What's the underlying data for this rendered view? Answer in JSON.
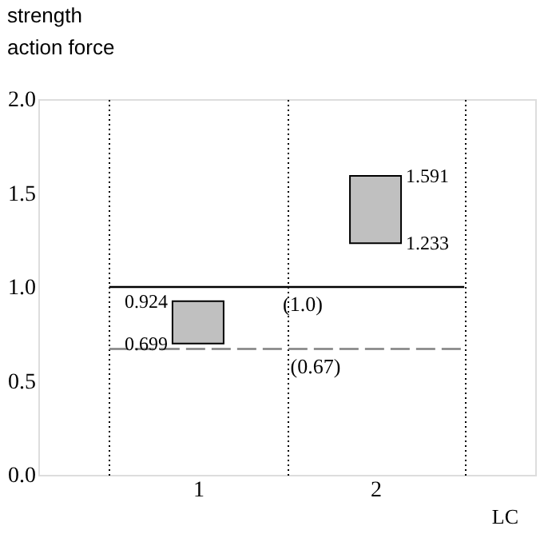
{
  "chart_data": {
    "type": "bar",
    "title": [
      "strength",
      "action force"
    ],
    "xlabel": "LC",
    "categories": [
      "1",
      "2"
    ],
    "values": [
      0.225,
      0.358
    ],
    "base": [
      0.699,
      1.233
    ],
    "color": "#c0c0c0",
    "ylim": [
      0,
      2.0
    ],
    "yticks": [
      {
        "value": 0,
        "label": "0.0"
      },
      0.5,
      {
        "value": 1,
        "label": "1.0"
      },
      1.5,
      {
        "value": 2,
        "label": "2.0"
      }
    ],
    "grid": "x",
    "ref_lines": [
      {
        "axis": "y",
        "value": 1.0,
        "label": "(1.0)",
        "color": "#000000",
        "line_style": "solid"
      },
      {
        "axis": "y",
        "value": 0.67,
        "label": "(0.67)",
        "color": "#808080",
        "line_style": "dashed"
      }
    ],
    "annotations": [
      {
        "text": "0.924",
        "x": "1",
        "y": 0.924
      },
      {
        "text": "0.699",
        "x": "1",
        "y": 0.699
      },
      {
        "text": "1.591",
        "x": "2",
        "y": 1.591
      },
      {
        "text": "1.233",
        "x": "2",
        "y": 1.233
      }
    ]
  }
}
